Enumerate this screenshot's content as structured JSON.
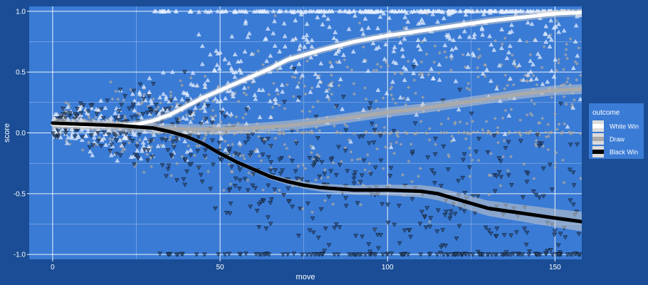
{
  "chart_data": {
    "type": "scatter",
    "title": "",
    "xlabel": "move",
    "ylabel": "score",
    "xlim": [
      -7,
      158
    ],
    "ylim": [
      -1.04,
      1.04
    ],
    "x_ticks": [
      0,
      50,
      100,
      150
    ],
    "x_tick_labels": [
      "0",
      "50",
      "100",
      "150"
    ],
    "y_ticks": [
      -1.0,
      -0.5,
      0.0,
      0.5,
      1.0
    ],
    "y_tick_labels": [
      "-1.0",
      "-0.5",
      "0.0",
      "0.5",
      "1.0"
    ],
    "grid": true,
    "legend": {
      "title": "outcome",
      "position": "right",
      "entries": [
        "White Win",
        "Draw",
        "Black Win"
      ]
    },
    "colors": {
      "page_background": "#1a4d95",
      "panel_background": "#3a7bd5",
      "grid": "#ffffff",
      "white_win": "#ffffff",
      "draw": "#aaaaaa",
      "black_win": "#000000",
      "ribbon": "#c8c8c8"
    },
    "series": [
      {
        "name": "White Win",
        "marker": "triangle-up",
        "smooth": {
          "x": [
            0,
            10,
            20,
            25,
            30,
            35,
            40,
            45,
            50,
            55,
            60,
            65,
            70,
            80,
            90,
            100,
            110,
            120,
            130,
            140,
            150,
            158
          ],
          "y": [
            0.07,
            0.06,
            0.06,
            0.07,
            0.1,
            0.15,
            0.22,
            0.29,
            0.35,
            0.41,
            0.47,
            0.53,
            0.6,
            0.68,
            0.75,
            0.8,
            0.84,
            0.88,
            0.92,
            0.95,
            0.98,
            0.99
          ],
          "se": 0.03
        }
      },
      {
        "name": "Draw",
        "marker": "diamond",
        "smooth": {
          "x": [
            0,
            10,
            20,
            30,
            40,
            50,
            60,
            70,
            80,
            90,
            100,
            110,
            120,
            130,
            140,
            150,
            158
          ],
          "y": [
            0.08,
            0.07,
            0.05,
            0.04,
            0.03,
            0.03,
            0.04,
            0.06,
            0.09,
            0.13,
            0.17,
            0.2,
            0.24,
            0.28,
            0.32,
            0.35,
            0.36
          ],
          "se": 0.04
        }
      },
      {
        "name": "Black Win",
        "marker": "triangle-down",
        "smooth": {
          "x": [
            0,
            10,
            20,
            30,
            35,
            40,
            45,
            50,
            55,
            60,
            65,
            70,
            75,
            80,
            85,
            90,
            100,
            110,
            115,
            120,
            125,
            130,
            140,
            150,
            158
          ],
          "y": [
            0.08,
            0.07,
            0.06,
            0.04,
            0.01,
            -0.03,
            -0.09,
            -0.17,
            -0.24,
            -0.3,
            -0.36,
            -0.4,
            -0.43,
            -0.45,
            -0.46,
            -0.47,
            -0.47,
            -0.48,
            -0.5,
            -0.54,
            -0.58,
            -0.62,
            -0.66,
            -0.7,
            -0.73
          ],
          "se_start": 0.02,
          "se_end": 0.08
        }
      }
    ]
  }
}
